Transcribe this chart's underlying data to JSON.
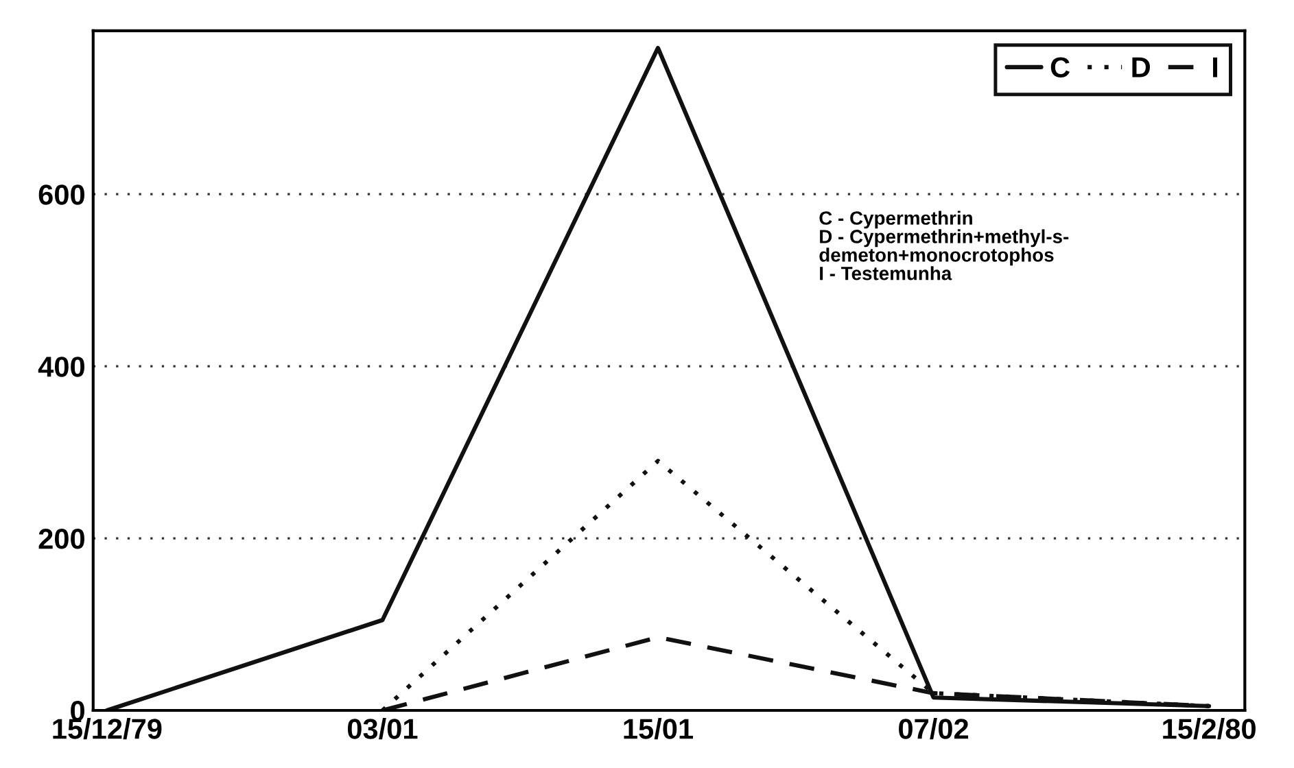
{
  "chart_data": {
    "type": "line",
    "categories": [
      "15/12/79",
      "03/01",
      "15/01",
      "07/02",
      "15/2/80"
    ],
    "series": [
      {
        "name": "C",
        "color": "#111111",
        "line_style": "solid",
        "values": [
          0,
          105,
          770,
          15,
          5
        ]
      },
      {
        "name": "D",
        "color": "#111111",
        "line_style": "dotted",
        "values": [
          null,
          0,
          290,
          20,
          5
        ]
      },
      {
        "name": "I",
        "color": "#111111",
        "line_style": "dashed",
        "values": [
          null,
          0,
          85,
          20,
          5
        ]
      }
    ],
    "ylim": [
      0,
      790
    ],
    "yticks": [
      0,
      200,
      400,
      600
    ],
    "grid": "y",
    "legend": "top right",
    "marker": "none",
    "annotations": [
      "C - Cypermethrin\nD - Cypermethrin+methyl-s-\ndemeton+monocrotophos\nI - Testemunha"
    ]
  }
}
